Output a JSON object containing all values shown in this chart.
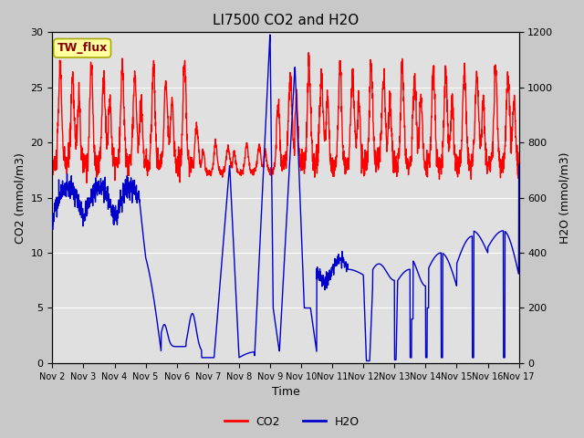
{
  "title": "LI7500 CO2 and H2O",
  "xlabel": "Time",
  "ylabel_left": "CO2 (mmol/m3)",
  "ylabel_right": "H2O (mmol/m3)",
  "annotation": "TW_flux",
  "ylim_left": [
    0,
    30
  ],
  "ylim_right": [
    0,
    1200
  ],
  "x_tick_labels": [
    "Nov 2",
    "Nov 3",
    "Nov 4",
    "Nov 5",
    "Nov 6",
    "Nov 7",
    "Nov 8",
    "Nov 9",
    "Nov 10",
    "Nov 11",
    "Nov 12",
    "Nov 13",
    "Nov 14",
    "Nov 15",
    "Nov 16",
    "Nov 17"
  ],
  "co2_color": "#FF0000",
  "h2o_color": "#0000CD",
  "fig_bg_color": "#C8C8C8",
  "plot_bg_color": "#E0E0E0",
  "legend_co2": "CO2",
  "legend_h2o": "H2O",
  "title_fontsize": 11,
  "axis_fontsize": 9,
  "tick_fontsize": 8,
  "linewidth": 1.0
}
